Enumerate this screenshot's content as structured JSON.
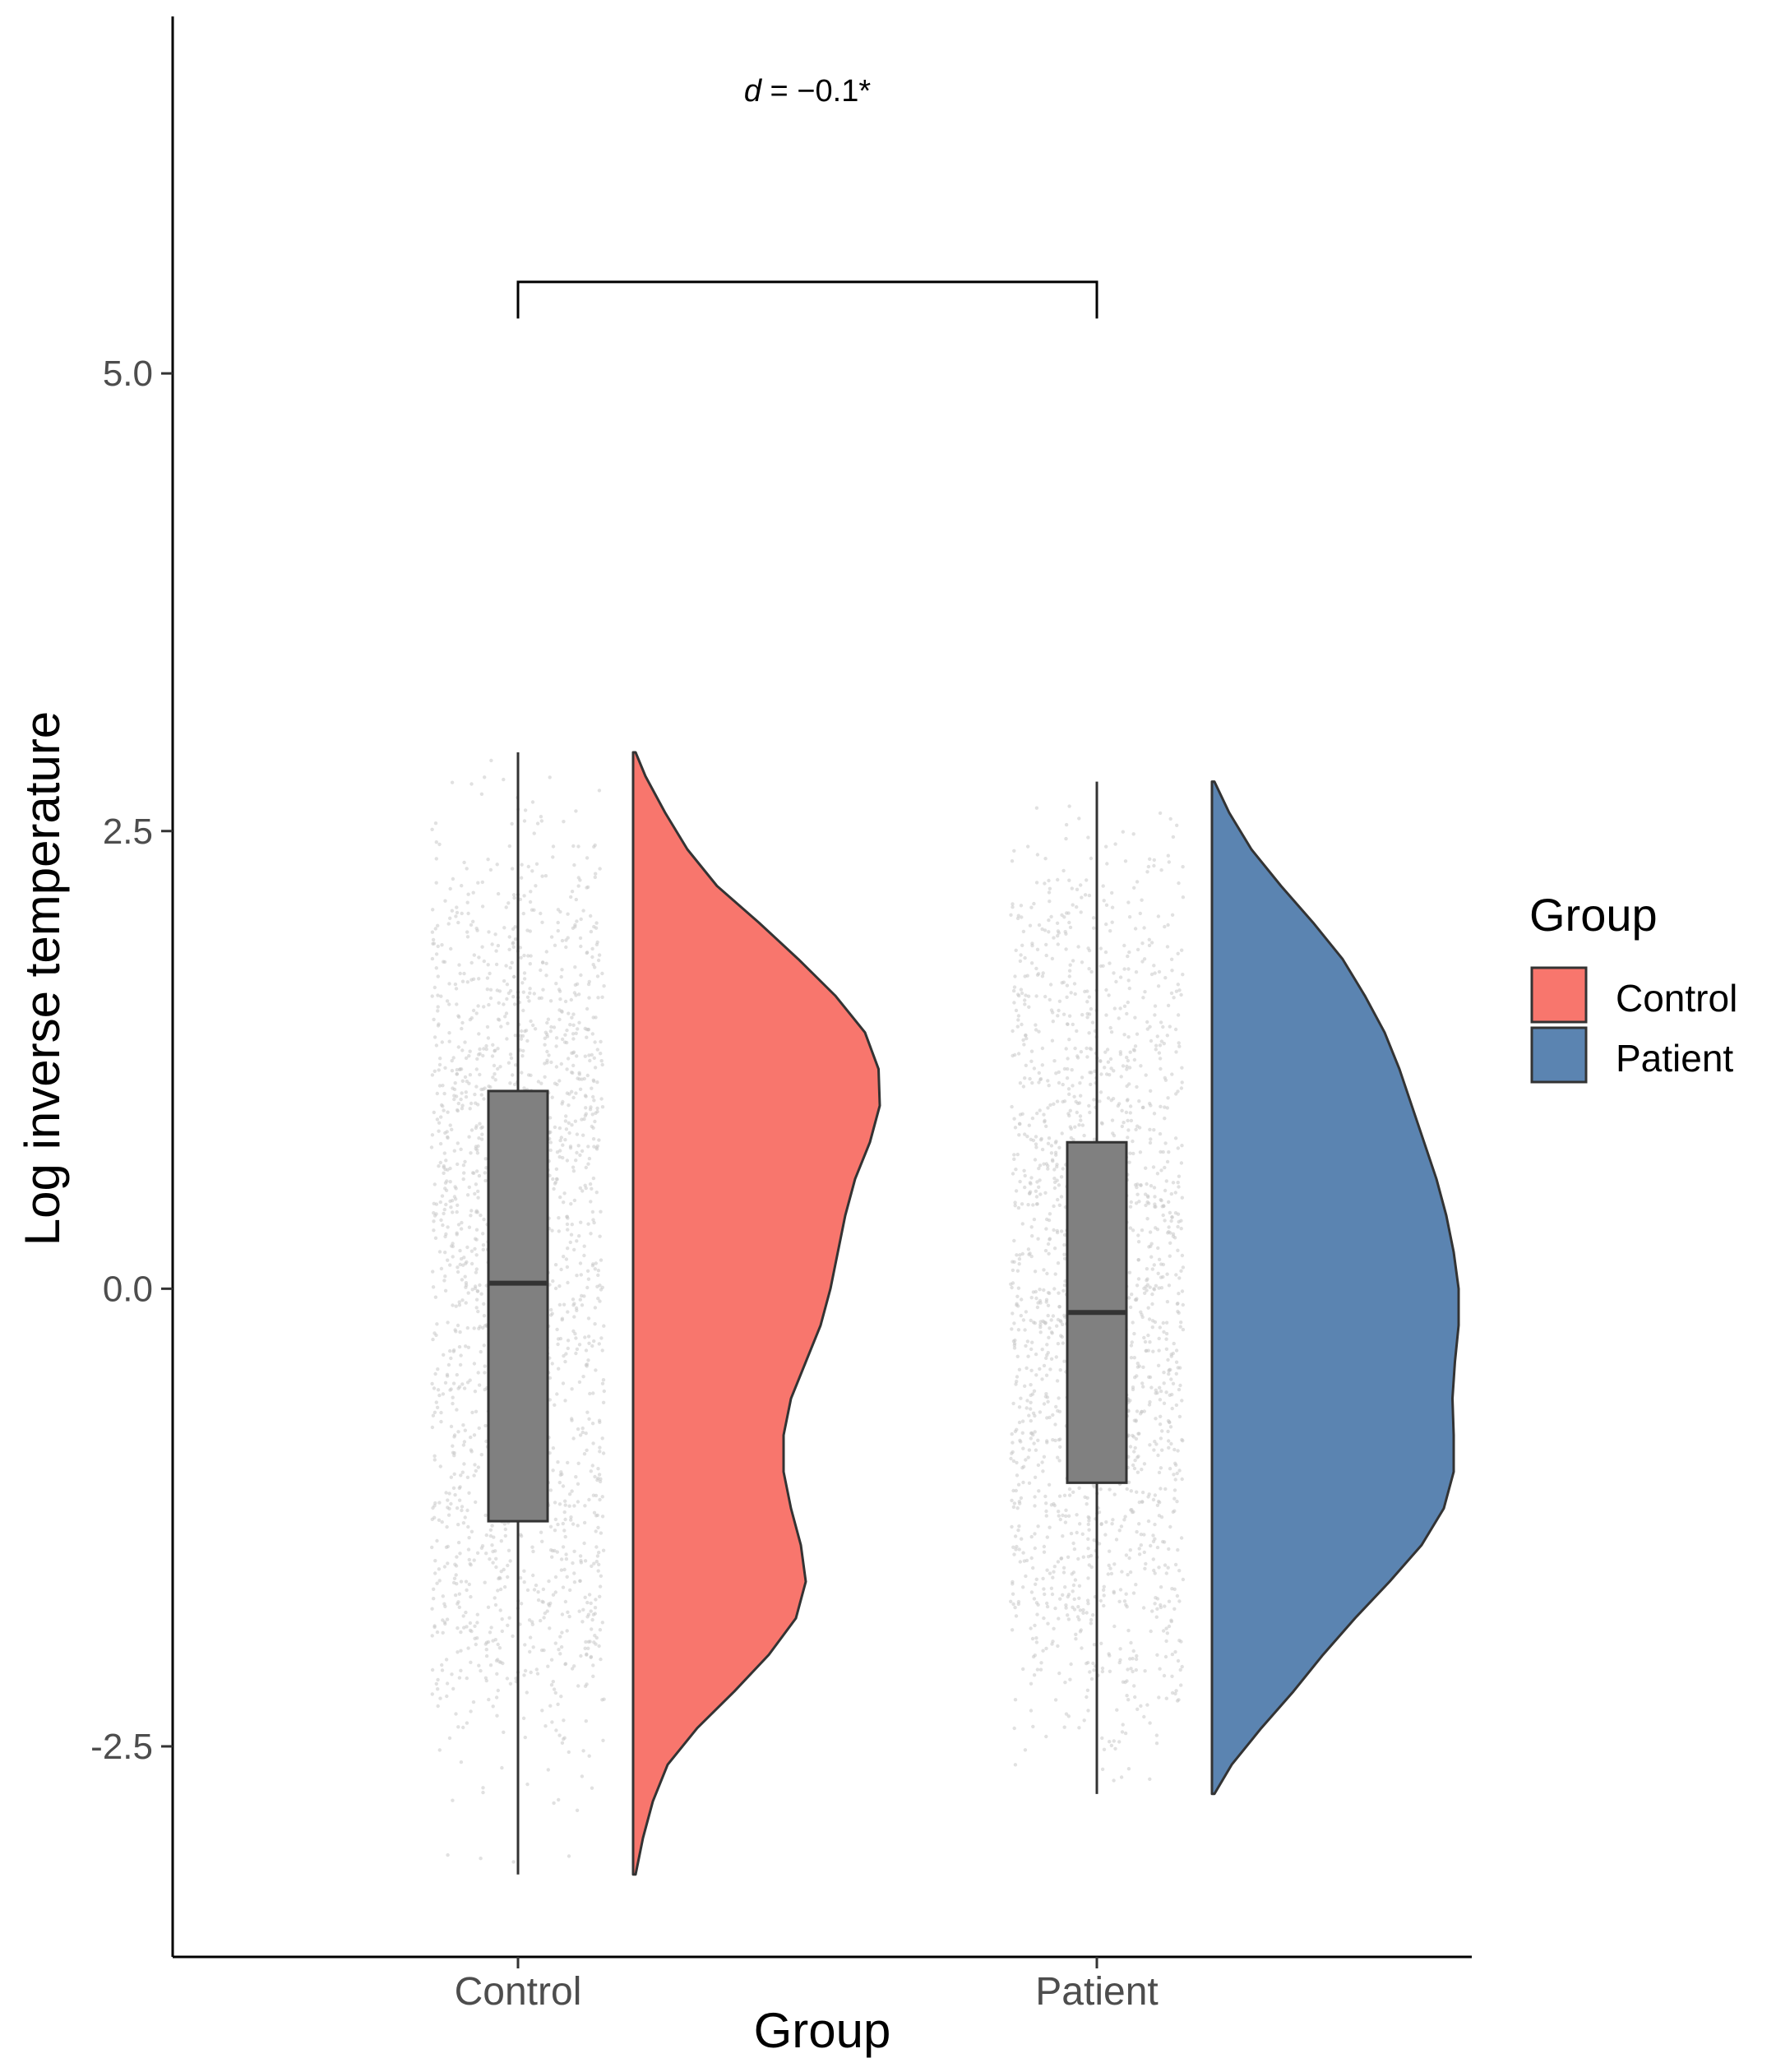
{
  "chart_data": {
    "type": "raincloud",
    "xlabel": "Group",
    "ylabel": "Log inverse temperature",
    "ylim": [
      -3.65,
      6.95
    ],
    "y_ticks": [
      5.0,
      2.5,
      0.0,
      -2.5
    ],
    "y_tick_labels": [
      "5.0",
      "2.5",
      "0.0",
      "-2.5"
    ],
    "categories": [
      "Control",
      "Patient"
    ],
    "legend": {
      "title": "Group",
      "position": "right",
      "entries": [
        "Control",
        "Patient"
      ]
    },
    "colors": {
      "Control": "#F8766D",
      "Patient": "#5B84B1",
      "box_fill": "#808080",
      "points": "#c8c8c8"
    },
    "annotation": {
      "symbol": "d",
      "text": " = −0.1*",
      "y": 6.55,
      "bracket_y": 5.5,
      "bracket_tip_y": 5.3
    },
    "series": [
      {
        "name": "Control",
        "box": {
          "q1": -1.27,
          "median": 0.03,
          "q3": 1.08,
          "min": -3.2,
          "max": 2.93
        },
        "points_range": [
          -3.2,
          2.93
        ],
        "density": [
          [
            2.93,
            0.01
          ],
          [
            2.8,
            0.05
          ],
          [
            2.6,
            0.13
          ],
          [
            2.4,
            0.22
          ],
          [
            2.2,
            0.34
          ],
          [
            2.0,
            0.51
          ],
          [
            1.8,
            0.67
          ],
          [
            1.6,
            0.82
          ],
          [
            1.4,
            0.94
          ],
          [
            1.2,
            0.995
          ],
          [
            1.0,
            1.0
          ],
          [
            0.8,
            0.96
          ],
          [
            0.6,
            0.9
          ],
          [
            0.4,
            0.86
          ],
          [
            0.2,
            0.83
          ],
          [
            0.0,
            0.8
          ],
          [
            -0.2,
            0.76
          ],
          [
            -0.4,
            0.7
          ],
          [
            -0.6,
            0.64
          ],
          [
            -0.8,
            0.61
          ],
          [
            -1.0,
            0.61
          ],
          [
            -1.2,
            0.64
          ],
          [
            -1.4,
            0.68
          ],
          [
            -1.6,
            0.7
          ],
          [
            -1.8,
            0.66
          ],
          [
            -2.0,
            0.55
          ],
          [
            -2.2,
            0.41
          ],
          [
            -2.4,
            0.26
          ],
          [
            -2.6,
            0.14
          ],
          [
            -2.8,
            0.08
          ],
          [
            -3.0,
            0.04
          ],
          [
            -3.2,
            0.01
          ]
        ]
      },
      {
        "name": "Patient",
        "box": {
          "q1": -1.06,
          "median": -0.13,
          "q3": 0.8,
          "min": -2.76,
          "max": 2.77
        },
        "points_range": [
          -2.76,
          2.77
        ],
        "density": [
          [
            2.77,
            0.01
          ],
          [
            2.6,
            0.07
          ],
          [
            2.4,
            0.16
          ],
          [
            2.2,
            0.28
          ],
          [
            2.0,
            0.41
          ],
          [
            1.8,
            0.53
          ],
          [
            1.6,
            0.62
          ],
          [
            1.4,
            0.7
          ],
          [
            1.2,
            0.76
          ],
          [
            1.0,
            0.81
          ],
          [
            0.8,
            0.86
          ],
          [
            0.6,
            0.91
          ],
          [
            0.4,
            0.95
          ],
          [
            0.2,
            0.98
          ],
          [
            0.0,
            1.0
          ],
          [
            -0.2,
            1.0
          ],
          [
            -0.4,
            0.985
          ],
          [
            -0.6,
            0.975
          ],
          [
            -0.8,
            0.98
          ],
          [
            -1.0,
            0.98
          ],
          [
            -1.2,
            0.94
          ],
          [
            -1.4,
            0.85
          ],
          [
            -1.6,
            0.72
          ],
          [
            -1.8,
            0.58
          ],
          [
            -2.0,
            0.45
          ],
          [
            -2.2,
            0.33
          ],
          [
            -2.4,
            0.2
          ],
          [
            -2.6,
            0.08
          ],
          [
            -2.76,
            0.01
          ]
        ]
      }
    ]
  }
}
